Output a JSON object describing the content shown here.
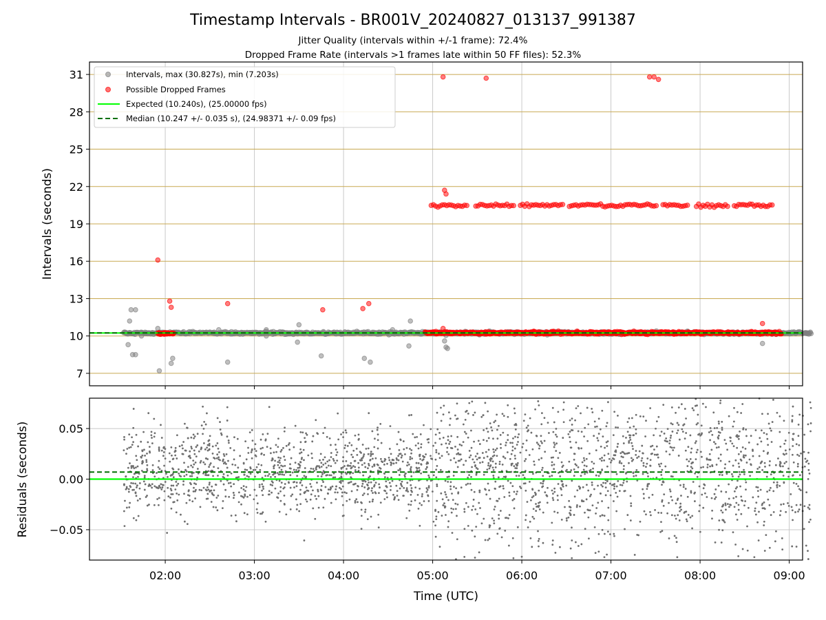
{
  "title": "Timestamp Intervals - BR001V_20240827_013137_991387",
  "subtitle_line1": "Jitter Quality (intervals within +/-1 frame): 72.4%",
  "subtitle_line2": "Dropped Frame Rate (intervals >1 frames late within 50 FF files): 52.3%",
  "colors": {
    "interval_points": "#808080",
    "dropped_points": "#ff0000",
    "expected_line": "#00ff00",
    "median_line": "#007000",
    "hgrid_top": "#c8a850",
    "vgrid": "#c8c8c8",
    "residual_points": "#6e6e6e"
  },
  "chart_data": [
    {
      "type": "scatter",
      "id": "intervals",
      "ylabel": "Intervals (seconds)",
      "ylim": [
        6,
        32
      ],
      "yticks": [
        7,
        10,
        13,
        16,
        19,
        22,
        25,
        28,
        31
      ],
      "xlim_hours": [
        1.15,
        9.15
      ],
      "grid": "horizontal gridlines at y ticks, vertical gridlines at x ticks",
      "legend_placement": "upper left",
      "legend": [
        {
          "label": "Intervals, max (30.827s), min (7.203s)",
          "marker": "gray dot"
        },
        {
          "label": "Possible Dropped Frames",
          "marker": "red dot"
        },
        {
          "label": "Expected (10.240s), (25.00000 fps)",
          "line": "solid green"
        },
        {
          "label": "Median (10.247 +/- 0.035 s), (24.98371 +/- 0.09 fps)",
          "line": "dashed dark green"
        }
      ],
      "expected_value": 10.24,
      "median_value": 10.247,
      "series": [
        {
          "name": "Intervals, max (30.827s), min (7.203s)",
          "baseline_band": {
            "x_range": [
              "01:32",
              "09:15"
            ],
            "y": 10.24
          },
          "outliers": [
            {
              "x": "01:33",
              "y": 10.3
            },
            {
              "x": "01:35",
              "y": 9.3
            },
            {
              "x": "01:36",
              "y": 11.2
            },
            {
              "x": "01:37",
              "y": 12.1
            },
            {
              "x": "01:38",
              "y": 8.5
            },
            {
              "x": "01:40",
              "y": 12.1
            },
            {
              "x": "01:40",
              "y": 8.5
            },
            {
              "x": "01:44",
              "y": 10.0
            },
            {
              "x": "01:55",
              "y": 10.6
            },
            {
              "x": "01:56",
              "y": 7.2
            },
            {
              "x": "02:04",
              "y": 7.8
            },
            {
              "x": "02:05",
              "y": 8.2
            },
            {
              "x": "02:36",
              "y": 10.5
            },
            {
              "x": "02:42",
              "y": 7.9
            },
            {
              "x": "03:08",
              "y": 10.5
            },
            {
              "x": "03:08",
              "y": 10.0
            },
            {
              "x": "03:29",
              "y": 9.5
            },
            {
              "x": "03:30",
              "y": 10.9
            },
            {
              "x": "03:45",
              "y": 8.4
            },
            {
              "x": "04:14",
              "y": 8.2
            },
            {
              "x": "04:18",
              "y": 7.9
            },
            {
              "x": "04:33",
              "y": 10.5
            },
            {
              "x": "04:44",
              "y": 9.2
            },
            {
              "x": "04:45",
              "y": 11.2
            },
            {
              "x": "05:08",
              "y": 9.6
            },
            {
              "x": "05:09",
              "y": 9.1
            },
            {
              "x": "05:10",
              "y": 9.0
            },
            {
              "x": "08:42",
              "y": 9.4
            }
          ]
        },
        {
          "name": "Possible Dropped Frames",
          "baseline_band": {
            "x_range": [
              "04:55",
              "08:55"
            ],
            "y": 10.25
          },
          "early_band": {
            "x_range": [
              "01:55",
              "02:06"
            ],
            "y": 10.2
          },
          "band_20s": {
            "x_range": [
              "04:59",
              "08:50"
            ],
            "y": 20.5
          },
          "points": [
            {
              "x": "01:55",
              "y": 16.1
            },
            {
              "x": "02:03",
              "y": 12.8
            },
            {
              "x": "02:04",
              "y": 12.3
            },
            {
              "x": "02:42",
              "y": 12.6
            },
            {
              "x": "03:46",
              "y": 12.1
            },
            {
              "x": "04:13",
              "y": 12.2
            },
            {
              "x": "04:17",
              "y": 12.6
            },
            {
              "x": "05:07",
              "y": 10.6
            },
            {
              "x": "05:08",
              "y": 21.7
            },
            {
              "x": "05:09",
              "y": 21.4
            },
            {
              "x": "05:07",
              "y": 30.8
            },
            {
              "x": "05:36",
              "y": 30.7
            },
            {
              "x": "07:26",
              "y": 30.8
            },
            {
              "x": "07:29",
              "y": 30.8
            },
            {
              "x": "07:32",
              "y": 30.6
            },
            {
              "x": "08:42",
              "y": 11.0
            }
          ]
        }
      ]
    },
    {
      "type": "scatter",
      "id": "residuals",
      "ylabel": "Residuals (seconds)",
      "xlabel": "Time (UTC)",
      "ylim": [
        -0.08,
        0.08
      ],
      "yticks": [
        0.05,
        0.0,
        -0.05
      ],
      "ytick_labels": [
        "0.05",
        "0.00",
        "−0.05"
      ],
      "xticks": [
        "02:00",
        "03:00",
        "04:00",
        "05:00",
        "06:00",
        "07:00",
        "08:00",
        "09:00"
      ],
      "xlim_hours": [
        1.15,
        9.15
      ],
      "expected_value": 0.0,
      "median_value": 0.007,
      "series": [
        {
          "name": "Residuals",
          "x_range": [
            "01:32",
            "09:15"
          ],
          "spread_sd_before_05": 0.022,
          "spread_sd_after_05": 0.038,
          "point_count": 2600
        }
      ]
    }
  ]
}
